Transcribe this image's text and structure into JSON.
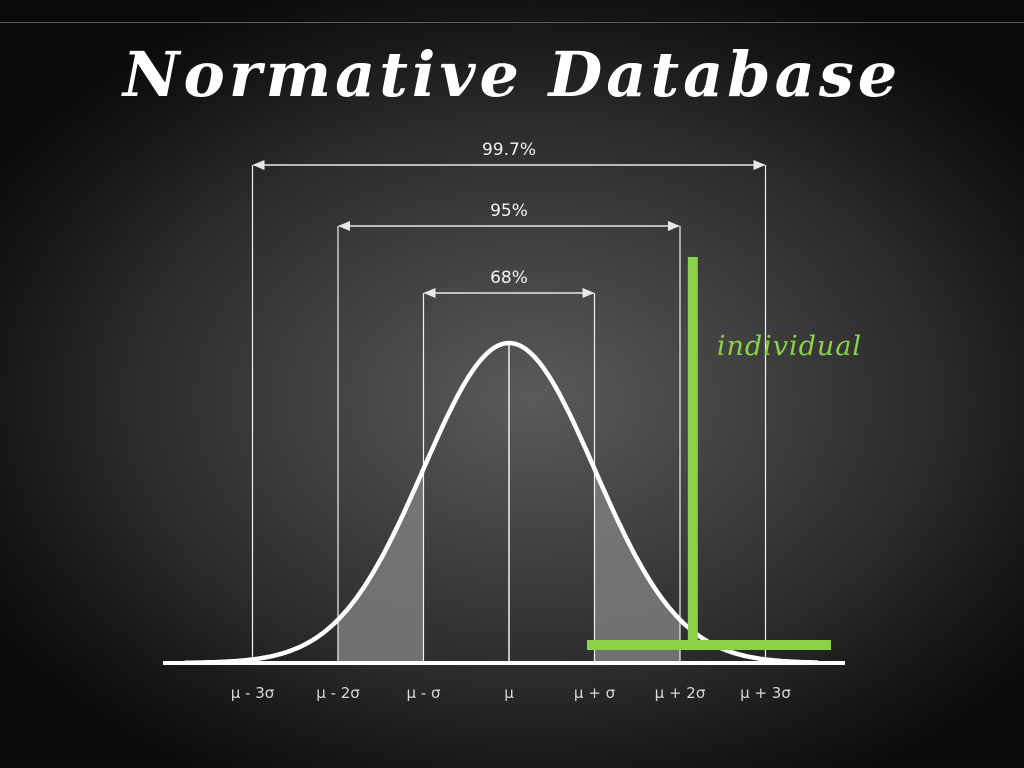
{
  "title": "Normative Database",
  "ranges": [
    {
      "label": "99.7%",
      "from_sigma": -3,
      "to_sigma": 3
    },
    {
      "label": "95%",
      "from_sigma": -2,
      "to_sigma": 2
    },
    {
      "label": "68%",
      "from_sigma": -1,
      "to_sigma": 1
    }
  ],
  "axis_labels": [
    "μ - 3σ",
    "μ - 2σ",
    "μ - σ",
    "μ",
    "μ + σ",
    "μ + 2σ",
    "μ + 3σ"
  ],
  "individual": {
    "label": "individual",
    "value_sigma": 2.15
  },
  "colors": {
    "chalk": "#ffffff",
    "highlight": "#8cd14a",
    "shaded_tail": "#7c7c7c"
  }
}
